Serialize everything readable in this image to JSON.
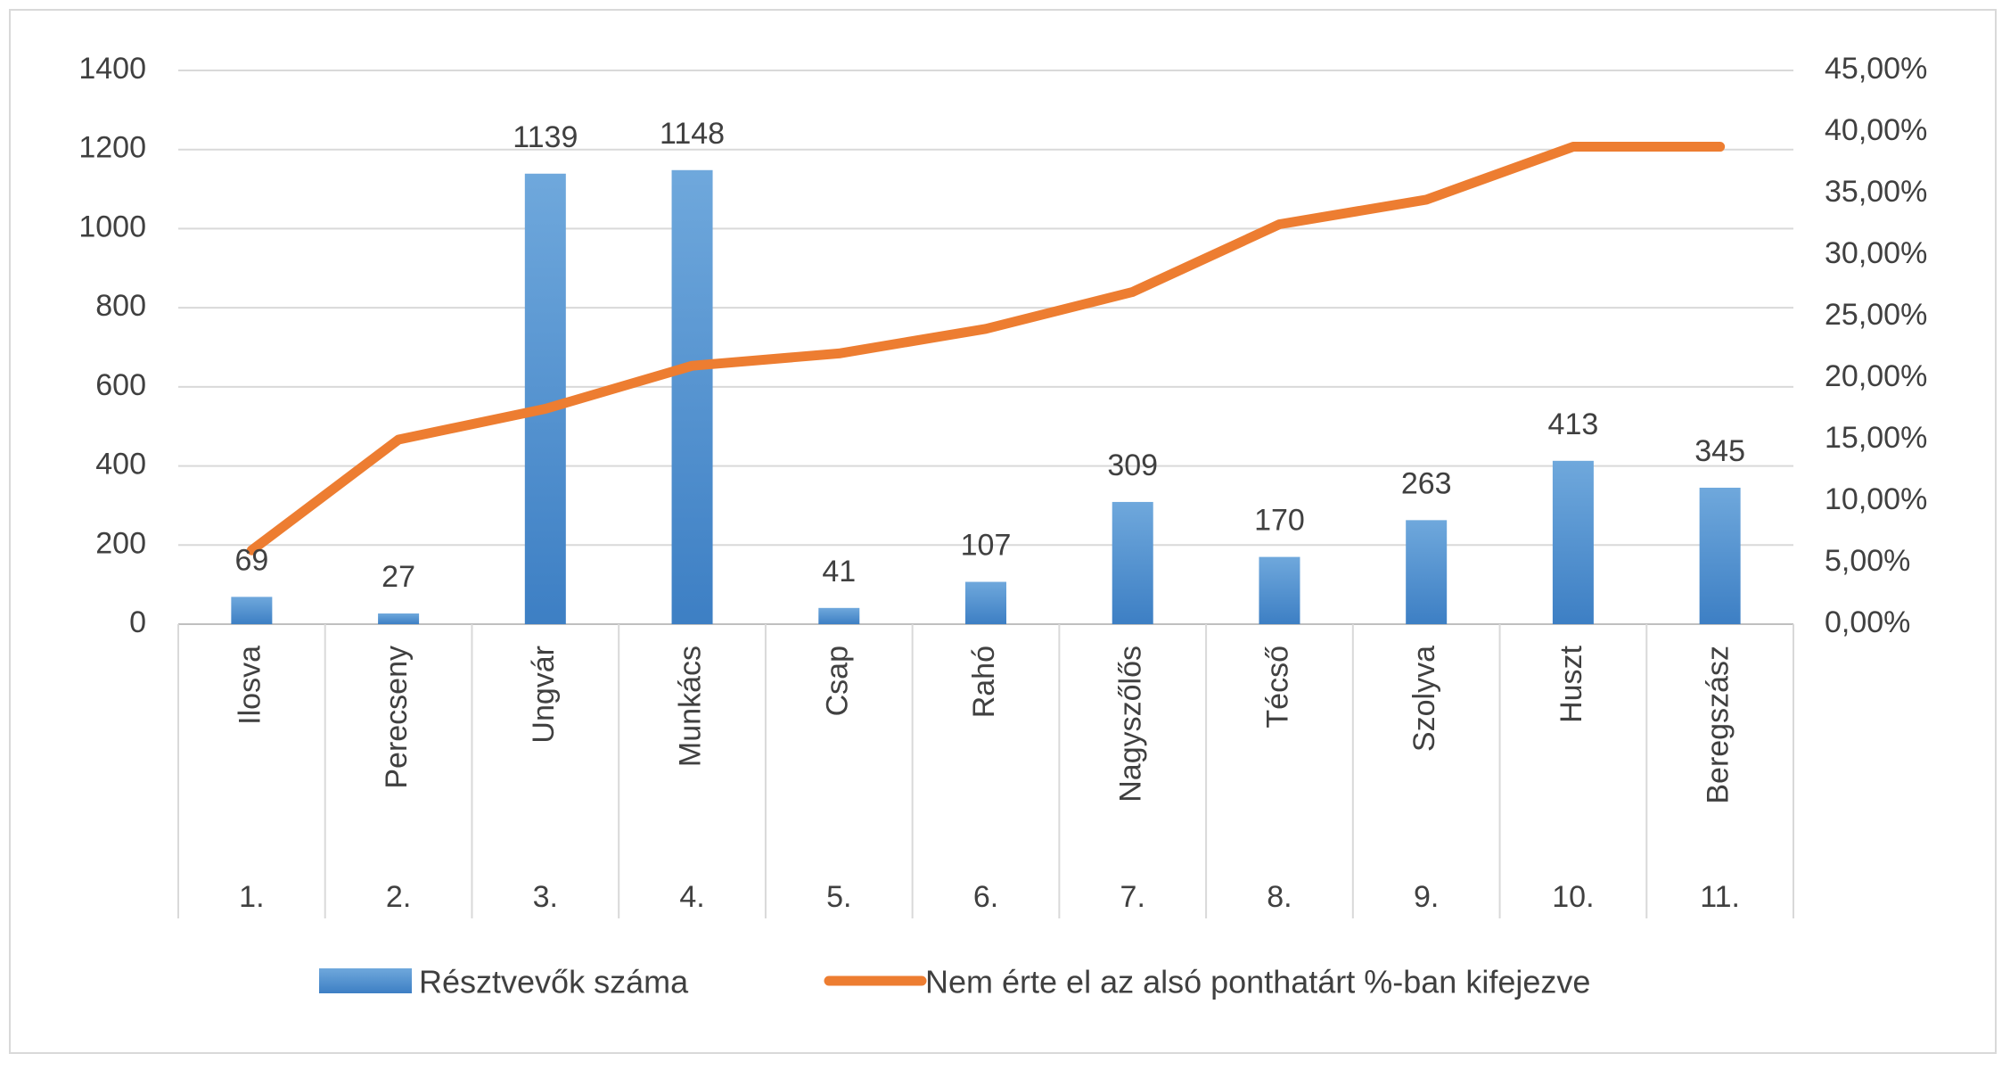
{
  "chart_data": {
    "type": "bar+line",
    "title": "",
    "categories": [
      "Ilosva",
      "Perecseny",
      "Ungvár",
      "Munkács",
      "Csap",
      "Rahó",
      "Nagyszőlős",
      "Técső",
      "Szolyva",
      "Huszt",
      "Beregszász"
    ],
    "category_numbers": [
      "1.",
      "2.",
      "3.",
      "4.",
      "5.",
      "6.",
      "7.",
      "8.",
      "9.",
      "10.",
      "11."
    ],
    "series": [
      {
        "name": "Résztvevők száma",
        "type": "bar",
        "axis": "left",
        "values": [
          69,
          27,
          1139,
          1148,
          41,
          107,
          309,
          170,
          263,
          413,
          345
        ],
        "data_labels": [
          "69",
          "27",
          "1139",
          "1148",
          "41",
          "107",
          "309",
          "170",
          "263",
          "413",
          "345"
        ],
        "color": "#5b9bd5"
      },
      {
        "name": "Nem érte el az alsó ponthatárt %-ban kifejezve",
        "type": "line",
        "axis": "right",
        "values": [
          0.06,
          0.15,
          0.175,
          0.21,
          0.22,
          0.24,
          0.27,
          0.325,
          0.345,
          0.388,
          0.388
        ],
        "color": "#ed7d31"
      }
    ],
    "y_left": {
      "min": 0,
      "max": 1400,
      "ticks": [
        "0",
        "200",
        "400",
        "600",
        "800",
        "1000",
        "1200",
        "1400"
      ]
    },
    "y_right": {
      "min": 0,
      "max": 0.45,
      "ticks": [
        "0,00%",
        "5,00%",
        "10,00%",
        "15,00%",
        "20,00%",
        "25,00%",
        "30,00%",
        "35,00%",
        "40,00%",
        "45,00%"
      ]
    },
    "grid": true,
    "legend": "bottom"
  }
}
